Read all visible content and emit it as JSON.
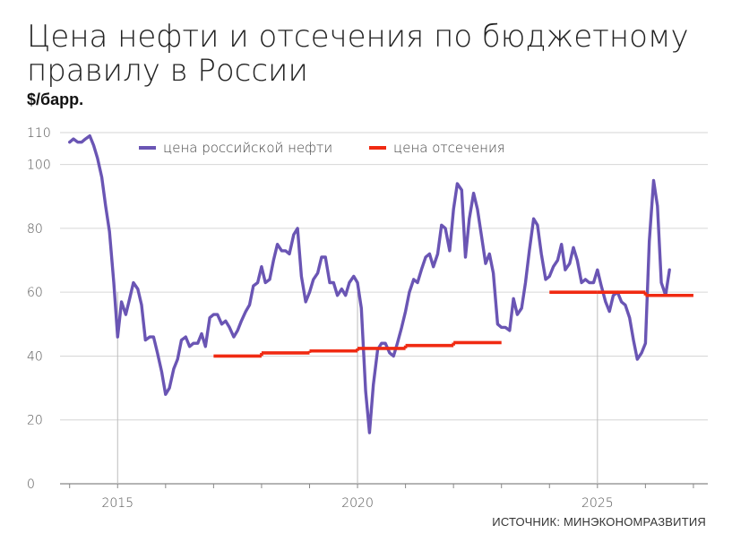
{
  "header": {
    "title": "Цена нефти и отсечения по бюджетному правилу в России",
    "unit": "$/барр."
  },
  "source": "ИСТОЧНИК: МИНЭКОНОМРАЗВИТИЯ",
  "colors": {
    "oil": "#6a55b4",
    "cutoff": "#f02a12",
    "grid": "#d6d6d6",
    "year_marker": "#bdbdbd"
  },
  "chart_data": {
    "type": "line",
    "title": "Цена нефти и отсечения по бюджетному правилу в России",
    "ylabel": "$/барр.",
    "xlabel": "",
    "ylim": [
      0,
      110
    ],
    "xlim": [
      2013.8,
      2027.3
    ],
    "y_ticks": [
      "0",
      "20",
      "40",
      "60",
      "80",
      "100",
      "110"
    ],
    "x_ticks": [
      {
        "value": 2015,
        "label": "2015"
      },
      {
        "value": 2020,
        "label": "2020"
      },
      {
        "value": 2025,
        "label": "2025"
      }
    ],
    "grid": true,
    "legend": "top",
    "series": [
      {
        "name": "цена российской нефти",
        "type": "line",
        "points": [
          [
            2014.0,
            107
          ],
          [
            2014.08,
            108
          ],
          [
            2014.17,
            107
          ],
          [
            2014.25,
            107
          ],
          [
            2014.33,
            108
          ],
          [
            2014.42,
            109
          ],
          [
            2014.5,
            106
          ],
          [
            2014.58,
            102
          ],
          [
            2014.67,
            96
          ],
          [
            2014.75,
            87
          ],
          [
            2014.83,
            79
          ],
          [
            2014.92,
            63
          ],
          [
            2015.0,
            46
          ],
          [
            2015.08,
            57
          ],
          [
            2015.17,
            53
          ],
          [
            2015.25,
            58
          ],
          [
            2015.33,
            63
          ],
          [
            2015.42,
            61
          ],
          [
            2015.5,
            56
          ],
          [
            2015.58,
            45
          ],
          [
            2015.67,
            46
          ],
          [
            2015.75,
            46
          ],
          [
            2015.83,
            41
          ],
          [
            2015.92,
            35
          ],
          [
            2016.0,
            28
          ],
          [
            2016.08,
            30
          ],
          [
            2016.17,
            36
          ],
          [
            2016.25,
            39
          ],
          [
            2016.33,
            45
          ],
          [
            2016.42,
            46
          ],
          [
            2016.5,
            43
          ],
          [
            2016.58,
            44
          ],
          [
            2016.67,
            44
          ],
          [
            2016.75,
            47
          ],
          [
            2016.83,
            43
          ],
          [
            2016.92,
            52
          ],
          [
            2017.0,
            53
          ],
          [
            2017.08,
            53
          ],
          [
            2017.17,
            50
          ],
          [
            2017.25,
            51
          ],
          [
            2017.33,
            49
          ],
          [
            2017.42,
            46
          ],
          [
            2017.5,
            48
          ],
          [
            2017.58,
            51
          ],
          [
            2017.67,
            54
          ],
          [
            2017.75,
            56
          ],
          [
            2017.83,
            62
          ],
          [
            2017.92,
            63
          ],
          [
            2018.0,
            68
          ],
          [
            2018.08,
            63
          ],
          [
            2018.17,
            64
          ],
          [
            2018.25,
            70
          ],
          [
            2018.33,
            75
          ],
          [
            2018.42,
            73
          ],
          [
            2018.5,
            73
          ],
          [
            2018.58,
            72
          ],
          [
            2018.67,
            78
          ],
          [
            2018.75,
            80
          ],
          [
            2018.83,
            65
          ],
          [
            2018.92,
            57
          ],
          [
            2019.0,
            60
          ],
          [
            2019.08,
            64
          ],
          [
            2019.17,
            66
          ],
          [
            2019.25,
            71
          ],
          [
            2019.33,
            71
          ],
          [
            2019.42,
            63
          ],
          [
            2019.5,
            63
          ],
          [
            2019.58,
            59
          ],
          [
            2019.67,
            61
          ],
          [
            2019.75,
            59
          ],
          [
            2019.83,
            63
          ],
          [
            2019.92,
            65
          ],
          [
            2020.0,
            63
          ],
          [
            2020.08,
            55
          ],
          [
            2020.17,
            29
          ],
          [
            2020.25,
            16
          ],
          [
            2020.33,
            31
          ],
          [
            2020.42,
            42
          ],
          [
            2020.5,
            44
          ],
          [
            2020.58,
            44
          ],
          [
            2020.67,
            41
          ],
          [
            2020.75,
            40
          ],
          [
            2020.83,
            44
          ],
          [
            2020.92,
            49
          ],
          [
            2021.0,
            54
          ],
          [
            2021.08,
            60
          ],
          [
            2021.17,
            64
          ],
          [
            2021.25,
            63
          ],
          [
            2021.33,
            67
          ],
          [
            2021.42,
            71
          ],
          [
            2021.5,
            72
          ],
          [
            2021.58,
            68
          ],
          [
            2021.67,
            72
          ],
          [
            2021.75,
            81
          ],
          [
            2021.83,
            80
          ],
          [
            2021.92,
            73
          ],
          [
            2022.0,
            86
          ],
          [
            2022.08,
            94
          ],
          [
            2022.17,
            92
          ],
          [
            2022.25,
            71
          ],
          [
            2022.33,
            83
          ],
          [
            2022.42,
            91
          ],
          [
            2022.5,
            86
          ],
          [
            2022.58,
            78
          ],
          [
            2022.67,
            69
          ],
          [
            2022.75,
            72
          ],
          [
            2022.83,
            66
          ],
          [
            2022.92,
            50
          ],
          [
            2023.0,
            49
          ],
          [
            2023.08,
            49
          ],
          [
            2023.17,
            48
          ],
          [
            2023.25,
            58
          ],
          [
            2023.33,
            53
          ],
          [
            2023.42,
            55
          ],
          [
            2023.5,
            63
          ],
          [
            2023.58,
            73
          ],
          [
            2023.67,
            83
          ],
          [
            2023.75,
            81
          ],
          [
            2023.83,
            72
          ],
          [
            2023.92,
            64
          ],
          [
            2024.0,
            65
          ],
          [
            2024.08,
            68
          ],
          [
            2024.17,
            70
          ],
          [
            2024.25,
            75
          ],
          [
            2024.33,
            67
          ],
          [
            2024.42,
            69
          ],
          [
            2024.5,
            74
          ],
          [
            2024.58,
            70
          ],
          [
            2024.67,
            63
          ],
          [
            2024.75,
            64
          ],
          [
            2024.83,
            63
          ],
          [
            2024.92,
            63
          ],
          [
            2025.0,
            67
          ],
          [
            2025.08,
            62
          ],
          [
            2025.17,
            57
          ],
          [
            2025.25,
            54
          ],
          [
            2025.33,
            59
          ],
          [
            2025.42,
            60
          ],
          [
            2025.5,
            57
          ],
          [
            2025.58,
            56
          ],
          [
            2025.67,
            52
          ],
          [
            2025.75,
            45
          ],
          [
            2025.83,
            39
          ],
          [
            2025.92,
            41
          ],
          [
            2026.0,
            44
          ],
          [
            2026.08,
            76
          ],
          [
            2026.17,
            95
          ],
          [
            2026.25,
            87
          ],
          [
            2026.33,
            63
          ],
          [
            2026.42,
            59
          ],
          [
            2026.5,
            67
          ]
        ]
      },
      {
        "name": "цена отсечения",
        "type": "step",
        "segments": [
          {
            "from": 2017.0,
            "to": 2018.0,
            "value": 40
          },
          {
            "from": 2018.0,
            "to": 2019.0,
            "value": 41
          },
          {
            "from": 2019.0,
            "to": 2020.0,
            "value": 41.6
          },
          {
            "from": 2020.0,
            "to": 2021.0,
            "value": 42.4
          },
          {
            "from": 2021.0,
            "to": 2022.0,
            "value": 43.3
          },
          {
            "from": 2022.0,
            "to": 2023.0,
            "value": 44.2
          },
          {
            "from": 2024.0,
            "to": 2025.0,
            "value": 60
          },
          {
            "from": 2025.0,
            "to": 2026.0,
            "value": 60
          },
          {
            "from": 2026.0,
            "to": 2027.0,
            "value": 59
          }
        ]
      }
    ]
  }
}
